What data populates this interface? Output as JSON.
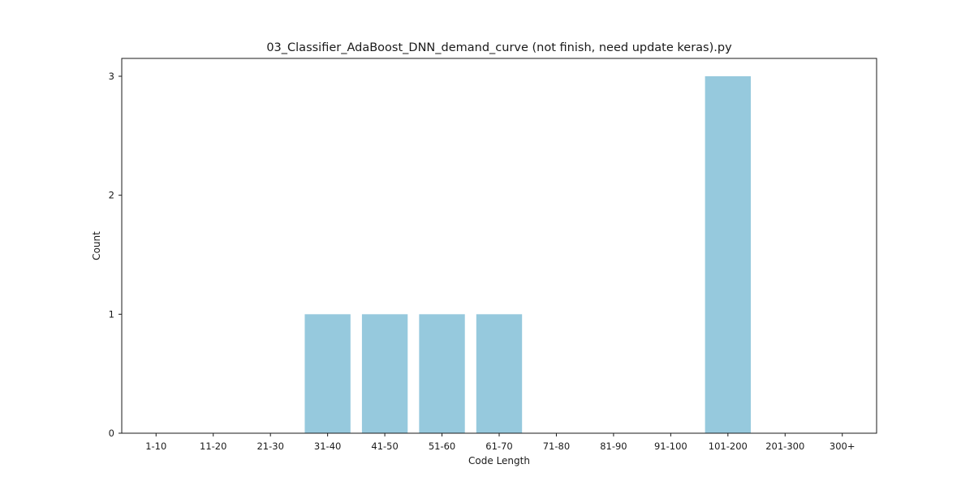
{
  "chart_data": {
    "type": "bar",
    "title": "03_Classifier_AdaBoost_DNN_demand_curve (not finish, need update keras).py",
    "xlabel": "Code Length",
    "ylabel": "Count",
    "categories": [
      "1-10",
      "11-20",
      "21-30",
      "31-40",
      "41-50",
      "51-60",
      "61-70",
      "71-80",
      "81-90",
      "91-100",
      "101-200",
      "201-300",
      "300+"
    ],
    "values": [
      0,
      0,
      0,
      1,
      1,
      1,
      1,
      0,
      0,
      0,
      3,
      0,
      0
    ],
    "ylim": [
      0,
      3.15
    ],
    "yticks": [
      0,
      1,
      2,
      3
    ],
    "bar_color": "#96c9dd",
    "grid": false,
    "legend": "none"
  }
}
